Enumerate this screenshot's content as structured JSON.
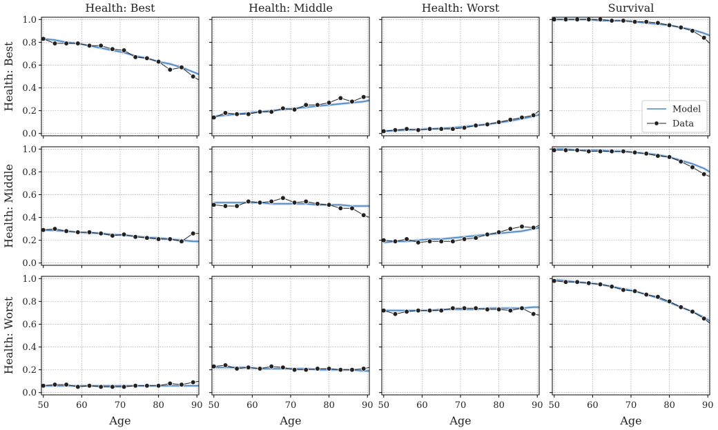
{
  "chart_data": {
    "type": "line",
    "col_titles": [
      "Health: Best",
      "Health: Middle",
      "Health: Worst",
      "Survival"
    ],
    "row_labels": [
      "Health: Best",
      "Health: Middle",
      "Health: Worst"
    ],
    "xlabel": "Age",
    "xlim": [
      49.5,
      90.5
    ],
    "ylim": [
      -0.02,
      1.02
    ],
    "x_ticks": [
      50,
      60,
      70,
      80,
      90
    ],
    "y_ticks": [
      0.0,
      0.2,
      0.4,
      0.6,
      0.8,
      1.0
    ],
    "y_tick_labels": [
      "0.0",
      "0.2",
      "0.4",
      "0.6",
      "0.8",
      "1.0"
    ],
    "grid": true,
    "legend": {
      "position": "lower-right",
      "panel": "row1-col4",
      "entries": [
        "Model",
        "Data"
      ]
    },
    "colors": {
      "model": "#4a86c0",
      "model_band": "#9dbad9",
      "data": "#222222"
    },
    "ages": [
      50,
      53,
      56,
      59,
      62,
      65,
      68,
      71,
      74,
      77,
      80,
      83,
      86,
      89,
      90.5
    ],
    "panels": [
      [
        {
          "data": [
            0.83,
            0.79,
            0.79,
            0.79,
            0.77,
            0.77,
            0.74,
            0.73,
            0.67,
            0.66,
            0.63,
            0.56,
            0.58,
            0.5,
            0.47
          ],
          "model": [
            0.83,
            0.82,
            0.8,
            0.79,
            0.77,
            0.75,
            0.73,
            0.71,
            0.68,
            0.66,
            0.63,
            0.61,
            0.58,
            0.54,
            0.52
          ]
        },
        {
          "data": [
            0.14,
            0.18,
            0.17,
            0.17,
            0.19,
            0.19,
            0.22,
            0.21,
            0.25,
            0.25,
            0.27,
            0.31,
            0.28,
            0.32,
            0.32
          ],
          "model": [
            0.15,
            0.16,
            0.17,
            0.18,
            0.19,
            0.2,
            0.21,
            0.22,
            0.23,
            0.24,
            0.25,
            0.26,
            0.27,
            0.28,
            0.29
          ]
        },
        {
          "data": [
            0.02,
            0.03,
            0.04,
            0.03,
            0.04,
            0.04,
            0.04,
            0.05,
            0.07,
            0.08,
            0.1,
            0.12,
            0.14,
            0.16,
            0.2
          ],
          "model": [
            0.02,
            0.025,
            0.03,
            0.035,
            0.04,
            0.045,
            0.05,
            0.06,
            0.07,
            0.08,
            0.095,
            0.11,
            0.13,
            0.15,
            0.165
          ]
        },
        {
          "data": [
            1.0,
            1.0,
            1.0,
            1.0,
            1.0,
            0.99,
            0.99,
            0.98,
            0.98,
            0.97,
            0.95,
            0.93,
            0.9,
            0.84,
            0.79
          ],
          "model": [
            1.0,
            1.0,
            1.0,
            1.0,
            0.99,
            0.99,
            0.99,
            0.98,
            0.97,
            0.96,
            0.95,
            0.93,
            0.91,
            0.88,
            0.86
          ]
        }
      ],
      [
        {
          "data": [
            0.29,
            0.3,
            0.28,
            0.27,
            0.27,
            0.26,
            0.24,
            0.25,
            0.23,
            0.22,
            0.21,
            0.21,
            0.19,
            0.26,
            0.26
          ],
          "model": [
            0.29,
            0.285,
            0.28,
            0.27,
            0.265,
            0.26,
            0.25,
            0.245,
            0.235,
            0.225,
            0.22,
            0.21,
            0.2,
            0.19,
            0.19
          ]
        },
        {
          "data": [
            0.51,
            0.5,
            0.5,
            0.54,
            0.53,
            0.54,
            0.57,
            0.53,
            0.54,
            0.52,
            0.51,
            0.48,
            0.48,
            0.42,
            0.4
          ],
          "model": [
            0.53,
            0.53,
            0.53,
            0.53,
            0.53,
            0.52,
            0.52,
            0.52,
            0.52,
            0.51,
            0.51,
            0.51,
            0.5,
            0.5,
            0.5
          ]
        },
        {
          "data": [
            0.2,
            0.19,
            0.21,
            0.18,
            0.19,
            0.19,
            0.19,
            0.21,
            0.22,
            0.25,
            0.27,
            0.3,
            0.32,
            0.31,
            0.33
          ],
          "model": [
            0.18,
            0.19,
            0.19,
            0.2,
            0.21,
            0.21,
            0.22,
            0.23,
            0.24,
            0.25,
            0.26,
            0.27,
            0.28,
            0.3,
            0.31
          ]
        },
        {
          "data": [
            0.99,
            0.99,
            0.99,
            0.98,
            0.98,
            0.98,
            0.98,
            0.97,
            0.96,
            0.94,
            0.93,
            0.89,
            0.84,
            0.78,
            0.76
          ],
          "model": [
            1.0,
            1.0,
            0.99,
            0.99,
            0.99,
            0.98,
            0.98,
            0.97,
            0.96,
            0.95,
            0.93,
            0.9,
            0.87,
            0.83,
            0.8
          ]
        }
      ],
      [
        {
          "data": [
            0.06,
            0.07,
            0.07,
            0.05,
            0.06,
            0.05,
            0.05,
            0.05,
            0.06,
            0.06,
            0.06,
            0.08,
            0.07,
            0.09,
            0.1
          ],
          "model": [
            0.06,
            0.06,
            0.06,
            0.06,
            0.06,
            0.06,
            0.06,
            0.06,
            0.06,
            0.06,
            0.06,
            0.06,
            0.06,
            0.06,
            0.06
          ]
        },
        {
          "data": [
            0.23,
            0.24,
            0.21,
            0.22,
            0.21,
            0.23,
            0.22,
            0.2,
            0.2,
            0.21,
            0.21,
            0.2,
            0.2,
            0.21,
            0.22
          ],
          "model": [
            0.22,
            0.22,
            0.22,
            0.22,
            0.21,
            0.21,
            0.21,
            0.21,
            0.21,
            0.2,
            0.2,
            0.2,
            0.2,
            0.19,
            0.19
          ]
        },
        {
          "data": [
            0.72,
            0.69,
            0.71,
            0.72,
            0.72,
            0.72,
            0.74,
            0.74,
            0.74,
            0.73,
            0.73,
            0.72,
            0.74,
            0.69,
            0.68
          ],
          "model": [
            0.72,
            0.72,
            0.72,
            0.72,
            0.72,
            0.73,
            0.73,
            0.73,
            0.73,
            0.74,
            0.74,
            0.74,
            0.74,
            0.75,
            0.75
          ]
        },
        {
          "data": [
            0.98,
            0.97,
            0.97,
            0.96,
            0.95,
            0.93,
            0.9,
            0.89,
            0.86,
            0.84,
            0.8,
            0.75,
            0.71,
            0.65,
            0.61
          ],
          "model": [
            0.99,
            0.98,
            0.97,
            0.96,
            0.95,
            0.93,
            0.91,
            0.89,
            0.86,
            0.83,
            0.79,
            0.75,
            0.71,
            0.66,
            0.63
          ]
        }
      ]
    ]
  }
}
